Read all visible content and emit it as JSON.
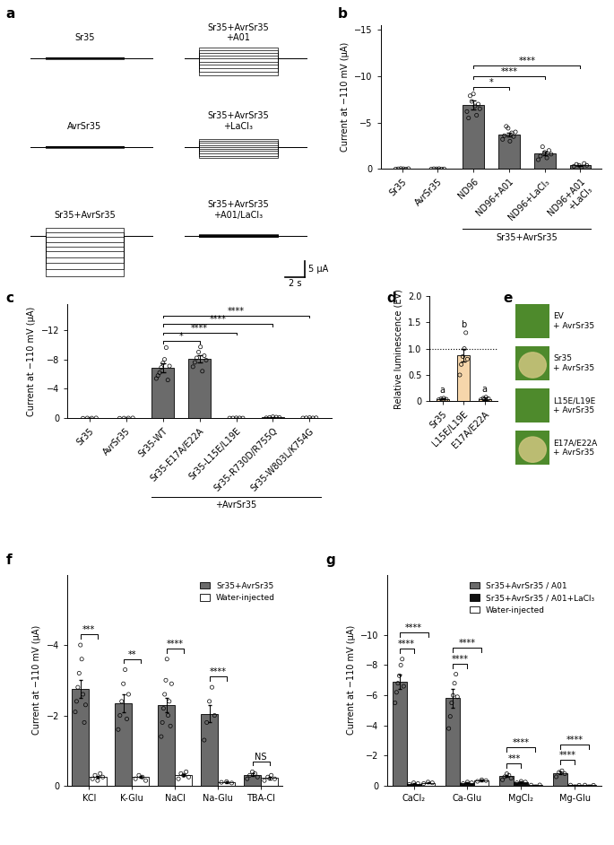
{
  "chart_data": [
    {
      "type": "traces",
      "panel": "a",
      "step_s": [
        0,
        8
      ],
      "window_s": [
        -1.5,
        11
      ],
      "ylim": [
        -15,
        5
      ],
      "groups": [
        {
          "title": "Sr35",
          "levels": [
            0.3,
            0.2,
            0.15,
            0.1,
            0,
            -0.05,
            -0.1,
            -0.15,
            -0.2,
            -0.3
          ]
        },
        {
          "title": "AvrSr35",
          "levels": [
            0.3,
            0.2,
            0.15,
            0.1,
            0,
            -0.05,
            -0.1,
            -0.15,
            -0.2,
            -0.3
          ]
        },
        {
          "title": "Sr35+AvrSr35",
          "levels": [
            2.5,
            1.0,
            -0.5,
            -2.0,
            -3.5,
            -5.0,
            -6.8,
            -8.6,
            -10.6,
            -12.8
          ]
        },
        {
          "title": "Sr35+AvrSr35\n+A01",
          "levels": [
            3.2,
            2.4,
            1.5,
            0.7,
            -0.2,
            -1.1,
            -2.1,
            -3.1,
            -4.2,
            -5.4
          ]
        },
        {
          "title": "Sr35+AvrSr35\n+LaCl₃",
          "levels": [
            2.4,
            1.8,
            1.2,
            0.6,
            0,
            -0.6,
            -1.3,
            -2.0,
            -2.8,
            -3.6
          ]
        },
        {
          "title": "Sr35+AvrSr35\n+A01/LaCl₃",
          "levels": [
            0.4,
            0.3,
            0.2,
            0.1,
            0,
            -0.1,
            -0.2,
            -0.3,
            -0.4,
            -0.5
          ]
        }
      ],
      "scale_bar": {
        "current": 5,
        "current_label": "5 μA",
        "time": 2,
        "time_label": "2 s"
      }
    },
    {
      "type": "bar",
      "panel": "b",
      "categories": [
        "Sr35",
        "AvrSr35",
        "ND96",
        "ND96+A01",
        "ND96+LaCl₃",
        "ND96+A01\n+LaCl₃"
      ],
      "values": [
        0,
        0,
        -6.9,
        -3.7,
        -1.7,
        -0.4
      ],
      "errors": [
        0,
        0,
        0.45,
        0.2,
        0.2,
        0.05
      ],
      "points": [
        [
          0,
          -0.02,
          -0.05,
          -0.03,
          0,
          -0.04
        ],
        [
          0,
          -0.03,
          -0.02,
          -0.04,
          0,
          -0.01
        ],
        [
          -6.2,
          -5.5,
          -7.9,
          -7.3,
          -8.1,
          -6.8,
          -5.8,
          -7.0,
          -6.5
        ],
        [
          -3.2,
          -3.6,
          -4.6,
          -4.4,
          -3.0,
          -3.9,
          -3.5,
          -4.0
        ],
        [
          -1.0,
          -1.4,
          -2.4,
          -1.8,
          -1.2,
          -2.0,
          -1.6
        ],
        [
          -0.3,
          -0.5,
          -0.4,
          -0.2,
          -0.6,
          -0.4
        ]
      ],
      "color": "#6b6b6b",
      "ylabel": "Current at −110 mV (μA)",
      "ylim": [
        0,
        -15.5
      ],
      "yticks": [
        0,
        {
          "value": -5,
          "label": "−5"
        },
        {
          "value": -10,
          "label": "−10"
        },
        {
          "value": -15,
          "label": "−15"
        }
      ],
      "comparisons": [
        {
          "from": 2,
          "to": 3,
          "label": "*"
        },
        {
          "from": 2,
          "to": 4,
          "label": "****"
        },
        {
          "from": 2,
          "to": 5,
          "label": "****"
        }
      ],
      "group": {
        "label": "Sr35+AvrSr35",
        "from": 2,
        "to": 5
      }
    },
    {
      "type": "bar",
      "panel": "c",
      "categories": [
        "Sr35",
        "AvrSr35",
        "Sr35-WT",
        "Sr35-E17A/E22A",
        "Sr35-L15E/L19E",
        "Sr35-R730D/R755Q",
        "Sr35-W803L/K754G"
      ],
      "values": [
        -0.02,
        -0.02,
        -6.9,
        -8.1,
        -0.03,
        -0.12,
        -0.05
      ],
      "errors": [
        0.01,
        0.01,
        0.6,
        0.5,
        0.01,
        0.05,
        0.02
      ],
      "points": [
        [
          0,
          -0.03,
          -0.02,
          -0.04
        ],
        [
          0,
          -0.02,
          -0.03,
          -0.04
        ],
        [
          -5.4,
          -5.8,
          -6.2,
          -6.9,
          -7.5,
          -8.0,
          -9.6,
          -5.2,
          -7.1
        ],
        [
          -7.0,
          -7.6,
          -8.2,
          -9.0,
          -9.7,
          -6.4,
          -8.5,
          -7.9
        ],
        [
          -0.02,
          -0.03,
          -0.05,
          -0.04,
          -0.02
        ],
        [
          -0.05,
          -0.1,
          -0.2,
          -0.15,
          -0.1
        ],
        [
          -0.03,
          -0.05,
          -0.08,
          -0.04,
          -0.06
        ]
      ],
      "color": "#6b6b6b",
      "ylabel": "Current at −110 mV (μA)",
      "ylim": [
        0,
        -15.5
      ],
      "yticks": [
        0,
        {
          "value": -4,
          "label": "−4"
        },
        {
          "value": -8,
          "label": "−8"
        },
        {
          "value": -12,
          "label": "−12"
        }
      ],
      "comparisons": [
        {
          "from": 2,
          "to": 3,
          "label": "*"
        },
        {
          "from": 2,
          "to": 4,
          "label": "****"
        },
        {
          "from": 2,
          "to": 5,
          "label": "****"
        },
        {
          "from": 2,
          "to": 6,
          "label": "****"
        }
      ],
      "group": {
        "label": "+AvrSr35",
        "from": 2,
        "to": 6
      }
    },
    {
      "type": "bar",
      "panel": "d",
      "categories": [
        "Sr35",
        "L15E/L19E",
        "E17A/E22A"
      ],
      "values": [
        0.05,
        0.87,
        0.05
      ],
      "errors": [
        0.01,
        0.12,
        0.02
      ],
      "points": [
        [
          0.03,
          0.05,
          0.06,
          0.04
        ],
        [
          0.5,
          0.7,
          0.85,
          1.0,
          1.3,
          0.8
        ],
        [
          0.03,
          0.06,
          0.08,
          0.05
        ]
      ],
      "color": "#f6d6ab",
      "ylabel": "Relative luminescence (EV)",
      "ylim": [
        0,
        2
      ],
      "yticks": [
        0,
        0.5,
        {
          "value": 1,
          "label": "1.0"
        },
        1.5,
        {
          "value": 2,
          "label": "2.0"
        }
      ],
      "letters": [
        "a",
        "b",
        "a"
      ],
      "reference_line": 1
    },
    {
      "type": "images",
      "panel": "e",
      "panels": [
        {
          "label": "EV\n+ AvrSr35",
          "cell_death": false
        },
        {
          "label": "Sr35\n+ AvrSr35",
          "cell_death": true
        },
        {
          "label": "L15E/L19E\n+ AvrSr35",
          "cell_death": false
        },
        {
          "label": "E17A/E22A\n+ AvrSr35",
          "cell_death": true
        }
      ]
    },
    {
      "type": "grouped_bar",
      "panel": "f",
      "categories": [
        "KCl",
        "K-Glu",
        "NaCl",
        "Na-Glu",
        "TBA-Cl"
      ],
      "series": [
        {
          "name": "Sr35+AvrSr35",
          "color": "#6b6b6b",
          "values": [
            -2.75,
            -2.35,
            -2.3,
            -2.05,
            -0.32
          ],
          "errors": [
            0.25,
            0.25,
            0.2,
            0.25,
            0.03
          ],
          "points": [
            [
              -2.1,
              -2.4,
              -2.8,
              -3.2,
              -4.0,
              -3.6,
              -2.6,
              -1.8,
              -2.3
            ],
            [
              -1.6,
              -2.0,
              -2.4,
              -2.9,
              -3.3,
              -1.9,
              -2.6
            ],
            [
              -1.4,
              -1.8,
              -2.2,
              -2.6,
              -3.0,
              -3.6,
              -2.0,
              -2.4,
              -1.7,
              -2.9
            ],
            [
              -1.3,
              -1.8,
              -2.4,
              -2.8,
              -2.0
            ],
            [
              -0.2,
              -0.3,
              -0.4,
              -0.35,
              -0.25
            ]
          ]
        },
        {
          "name": "Water-injected",
          "color": "#ffffff",
          "values": [
            -0.25,
            -0.25,
            -0.3,
            -0.1,
            -0.22
          ],
          "errors": [
            0.03,
            0.03,
            0.03,
            0.02,
            0.03
          ],
          "points": [
            [
              -0.2,
              -0.3,
              -0.15,
              -0.35,
              -0.25
            ],
            [
              -0.2,
              -0.3,
              -0.25,
              -0.15
            ],
            [
              -0.2,
              -0.35,
              -0.3,
              -0.4,
              -0.25
            ],
            [
              -0.1,
              -0.12,
              -0.08
            ],
            [
              -0.15,
              -0.25,
              -0.3,
              -0.2
            ]
          ]
        }
      ],
      "ylabel": "Current at −110 mV (μA)",
      "ylim": [
        0,
        -6
      ],
      "yticks": [
        0,
        {
          "value": -2,
          "label": "−2"
        },
        {
          "value": -4,
          "label": "−4"
        }
      ],
      "legend": "upper right",
      "comparisons": [
        {
          "category": 0,
          "from": 0,
          "to": 1,
          "label": "***"
        },
        {
          "category": 1,
          "from": 0,
          "to": 1,
          "label": "**"
        },
        {
          "category": 2,
          "from": 0,
          "to": 1,
          "label": "****"
        },
        {
          "category": 3,
          "from": 0,
          "to": 1,
          "label": "****"
        },
        {
          "category": 4,
          "from": 0,
          "to": 1,
          "label": "NS"
        }
      ]
    },
    {
      "type": "grouped_bar",
      "panel": "g",
      "categories": [
        "CaCl₂",
        "Ca-Glu",
        "MgCl₂",
        "Mg-Glu"
      ],
      "series": [
        {
          "name": "Sr35+AvrSr35 / A01",
          "color": "#6b6b6b",
          "values": [
            -6.9,
            -5.8,
            -0.65,
            -0.85
          ],
          "errors": [
            0.5,
            0.6,
            0.08,
            0.08
          ],
          "points": [
            [
              -5.5,
              -6.2,
              -6.8,
              -7.3,
              -8.0,
              -8.4,
              -6.6
            ],
            [
              -3.8,
              -4.6,
              -5.5,
              -6.0,
              -6.8,
              -7.4,
              -5.9
            ],
            [
              -0.4,
              -0.6,
              -0.8,
              -0.7,
              -0.5
            ],
            [
              -0.6,
              -0.9,
              -1.0,
              -0.8
            ]
          ]
        },
        {
          "name": "Sr35+AvrSr35 / A01+LaCl₃",
          "color": "#111111",
          "values": [
            -0.15,
            -0.2,
            -0.25,
            -0.05
          ],
          "errors": [
            0.02,
            0.03,
            0.05,
            0.01
          ],
          "points": [
            [
              -0.1,
              -0.2,
              -0.15
            ],
            [
              -0.15,
              -0.25,
              -0.2
            ],
            [
              -0.2,
              -0.3,
              -0.25
            ],
            [
              -0.05,
              -0.04
            ]
          ]
        },
        {
          "name": "Water-injected",
          "color": "#ffffff",
          "values": [
            -0.2,
            -0.35,
            -0.05,
            -0.05
          ],
          "errors": [
            0.03,
            0.05,
            0.01,
            0.01
          ],
          "points": [
            [
              -0.15,
              -0.25,
              -0.2
            ],
            [
              -0.3,
              -0.4,
              -0.35
            ],
            [
              -0.05,
              -0.06
            ],
            [
              -0.05,
              -0.04
            ]
          ]
        }
      ],
      "ylabel": "Current at −110 mV (μA)",
      "ylim": [
        0,
        -14
      ],
      "yticks": [
        0,
        {
          "value": -2,
          "label": "−2"
        },
        {
          "value": -4,
          "label": "−4"
        },
        {
          "value": -6,
          "label": "−6"
        },
        {
          "value": -8,
          "label": "−8"
        },
        {
          "value": -10,
          "label": "−10"
        }
      ],
      "legend": "upper right",
      "comparisons": [
        {
          "category": 0,
          "from": 0,
          "to": 1,
          "label": "****"
        },
        {
          "category": 0,
          "from": 0,
          "to": 2,
          "label": "****"
        },
        {
          "category": 1,
          "from": 0,
          "to": 1,
          "label": "****"
        },
        {
          "category": 1,
          "from": 0,
          "to": 2,
          "label": "****"
        },
        {
          "category": 2,
          "from": 0,
          "to": 1,
          "label": "***"
        },
        {
          "category": 2,
          "from": 0,
          "to": 2,
          "label": "****"
        },
        {
          "category": 3,
          "from": 0,
          "to": 1,
          "label": "****"
        },
        {
          "category": 3,
          "from": 0,
          "to": 2,
          "label": "****"
        }
      ]
    }
  ]
}
